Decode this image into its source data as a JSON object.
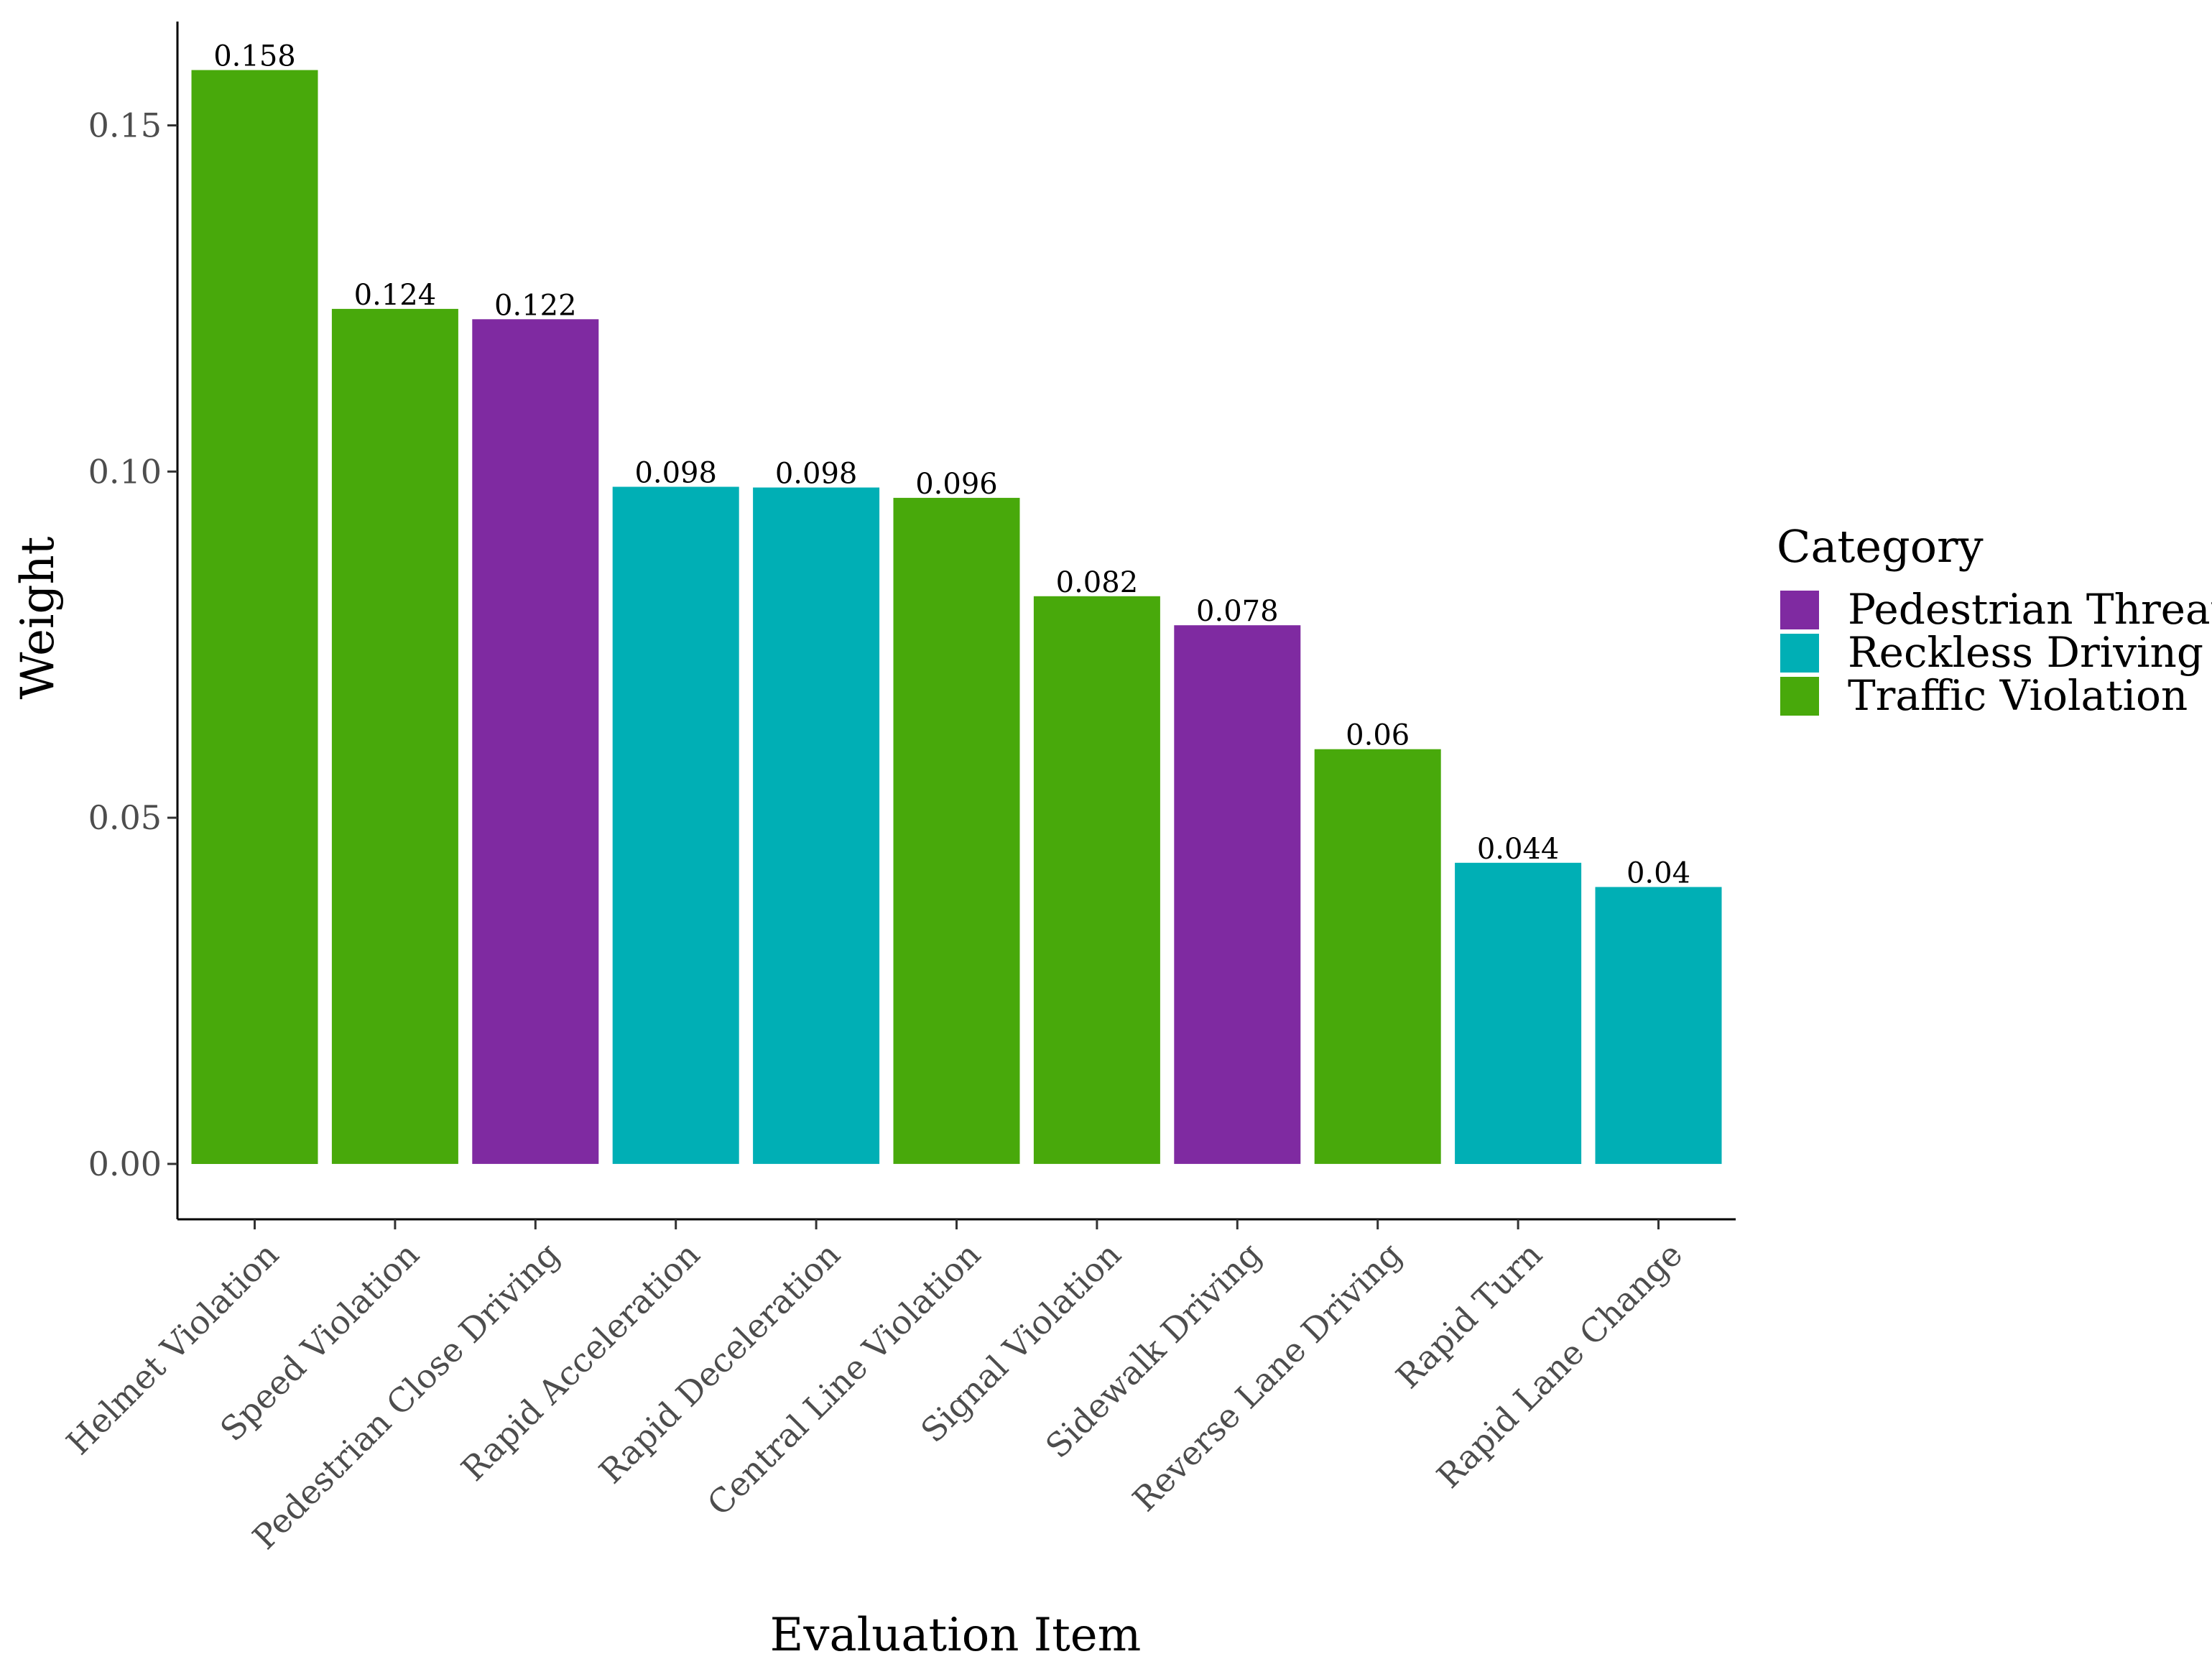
{
  "chart_data": {
    "type": "bar",
    "title": "",
    "xlabel": "Evaluation Item",
    "ylabel": "Weight",
    "ylim": [
      -0.008,
      0.165
    ],
    "yticks": [
      0.0,
      0.05,
      0.1,
      0.15
    ],
    "ytick_labels": [
      "0.00",
      "0.05",
      "0.10",
      "0.15"
    ],
    "grid": false,
    "categories": [
      "Helmet Violation",
      "Speed Violation",
      "Pedestrian Close Driving",
      "Rapid Acceleration",
      "Rapid Deceleration",
      "Central Line Violation",
      "Signal Violation",
      "Sidewalk Driving",
      "Reverse Lane Driving",
      "Rapid Turn",
      "Rapid Lane Change"
    ],
    "values": [
      0.158,
      0.1235,
      0.122,
      0.0978,
      0.0977,
      0.0962,
      0.082,
      0.0778,
      0.0599,
      0.0435,
      0.04
    ],
    "value_labels": [
      "0.158",
      "0.124",
      "0.122",
      "0.098",
      "0.098",
      "0.096",
      "0.082",
      "0.078",
      "0.06",
      "0.044",
      "0.04"
    ],
    "bar_categories": [
      "Traffic Violation",
      "Traffic Violation",
      "Pedestrian Threat",
      "Reckless Driving",
      "Reckless Driving",
      "Traffic Violation",
      "Traffic Violation",
      "Pedestrian Threat",
      "Traffic Violation",
      "Reckless Driving",
      "Reckless Driving"
    ],
    "legend": {
      "title": "Category",
      "placement": "right",
      "entries": [
        {
          "name": "Pedestrian Threat",
          "color": "#7F2AA1"
        },
        {
          "name": "Reckless Driving",
          "color": "#00AFB5"
        },
        {
          "name": "Traffic Violation",
          "color": "#48A90B"
        }
      ]
    }
  }
}
